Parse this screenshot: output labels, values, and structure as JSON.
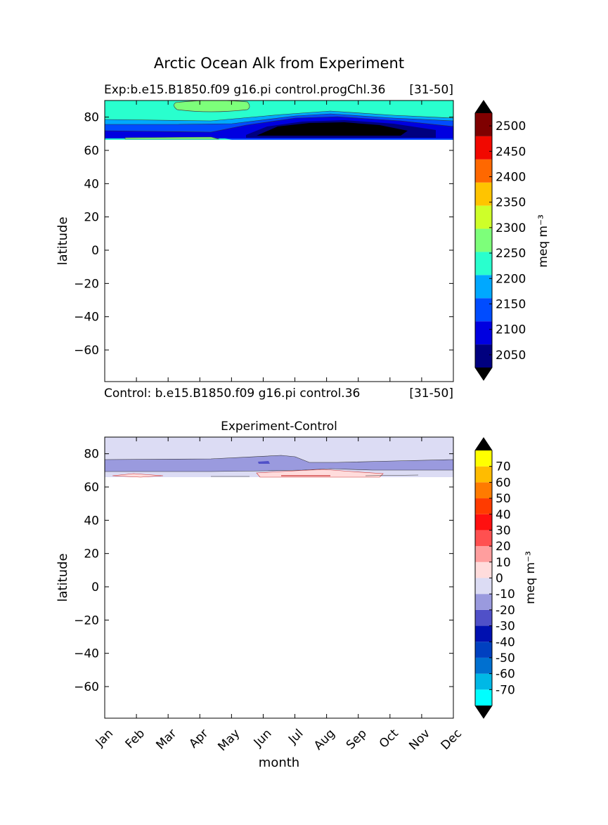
{
  "figure": {
    "title": "Arctic Ocean Alk from Experiment"
  },
  "chart_data": [
    {
      "type": "heatmap",
      "title_left": "Exp:b.e15.B1850.f09 g16.pi control.progChl.36",
      "title_right": "[31-50]",
      "footer_left": "Control: b.e15.B1850.f09 g16.pi control.36",
      "footer_right": "[31-50]",
      "ylabel": "latitude",
      "xlabel": "",
      "ylim": [
        -79,
        90
      ],
      "yticks": [
        80,
        60,
        40,
        20,
        0,
        -20,
        -40,
        -60
      ],
      "ytick_labels": [
        "80",
        "60",
        "40",
        "20",
        "0",
        "−20",
        "−40",
        "−60"
      ],
      "x_categories": [
        "Jan",
        "Feb",
        "Mar",
        "Apr",
        "May",
        "Jun",
        "Jul",
        "Aug",
        "Sep",
        "Oct",
        "Nov",
        "Dec"
      ],
      "colorbar": {
        "label": "meq m⁻³",
        "levels": [
          2025,
          2050,
          2075,
          2100,
          2125,
          2150,
          2175,
          2200,
          2225,
          2250,
          2275,
          2300,
          2325,
          2350,
          2375,
          2400,
          2425,
          2450,
          2475,
          2500,
          2525
        ],
        "band_colors": [
          "#00007f",
          "#0000e0",
          "#004cff",
          "#00a8ff",
          "#29ffce",
          "#7dff7a",
          "#ceff29",
          "#ffc400",
          "#ff6800",
          "#f10800",
          "#7f0000"
        ],
        "extend_color": "#000000",
        "tick_labels": [
          "2050",
          "2100",
          "2150",
          "2200",
          "2250",
          "2300",
          "2350",
          "2400",
          "2450",
          "2500"
        ],
        "tick_values": [
          2050,
          2100,
          2150,
          2200,
          2250,
          2300,
          2350,
          2400,
          2450,
          2500
        ]
      },
      "regions": [
        {
          "name": "band-cyan-north",
          "value": 2210,
          "color": "#29ffce"
        },
        {
          "name": "band-green-patch",
          "value": 2260,
          "color": "#7dff7a"
        },
        {
          "name": "band-lightblue",
          "value": 2170,
          "color": "#00a8ff"
        },
        {
          "name": "band-blue",
          "value": 2120,
          "color": "#004cff"
        },
        {
          "name": "band-deepblue",
          "value": 2090,
          "color": "#0000e0"
        },
        {
          "name": "band-navy",
          "value": 2060,
          "color": "#00007f"
        },
        {
          "name": "band-black",
          "value": 2020,
          "color": "#000000"
        }
      ]
    },
    {
      "type": "heatmap",
      "title": "Experiment-Control",
      "ylabel": "latitude",
      "xlabel": "month",
      "ylim": [
        -79,
        90
      ],
      "yticks": [
        80,
        60,
        40,
        20,
        0,
        -20,
        -40,
        -60
      ],
      "ytick_labels": [
        "80",
        "60",
        "40",
        "20",
        "0",
        "−20",
        "−40",
        "−60"
      ],
      "x_categories": [
        "Jan",
        "Feb",
        "Mar",
        "Apr",
        "May",
        "Jun",
        "Jul",
        "Aug",
        "Sep",
        "Oct",
        "Nov",
        "Dec"
      ],
      "colorbar": {
        "label": "meq m⁻³",
        "levels": [
          -80,
          -70,
          -60,
          -50,
          -40,
          -30,
          -20,
          -10,
          0,
          10,
          20,
          30,
          40,
          50,
          60,
          70,
          80
        ],
        "band_colors": [
          "#00ffff",
          "#00b8e6",
          "#0070d0",
          "#0040c0",
          "#0010b0",
          "#5050c8",
          "#9a9ade",
          "#dcdcf4",
          "#ffdcdc",
          "#ff9e9e",
          "#ff5050",
          "#ff1010",
          "#ff3b00",
          "#ff7b00",
          "#ffbc00",
          "#ffff00"
        ],
        "extend_color": "#000000",
        "tick_labels": [
          "-70",
          "-60",
          "-50",
          "-40",
          "-30",
          "-20",
          "-10",
          "0",
          "10",
          "20",
          "30",
          "40",
          "50",
          "60",
          "70"
        ],
        "tick_values": [
          -70,
          -60,
          -50,
          -40,
          -30,
          -20,
          -10,
          0,
          10,
          20,
          30,
          40,
          50,
          60,
          70
        ]
      },
      "regions": [
        {
          "name": "diff-pale-lavender",
          "value": -5,
          "color": "#dcdcf4"
        },
        {
          "name": "diff-lavender",
          "value": -15,
          "color": "#9a9ade"
        },
        {
          "name": "diff-pink",
          "value": 5,
          "color": "#ffdcdc"
        }
      ]
    }
  ]
}
